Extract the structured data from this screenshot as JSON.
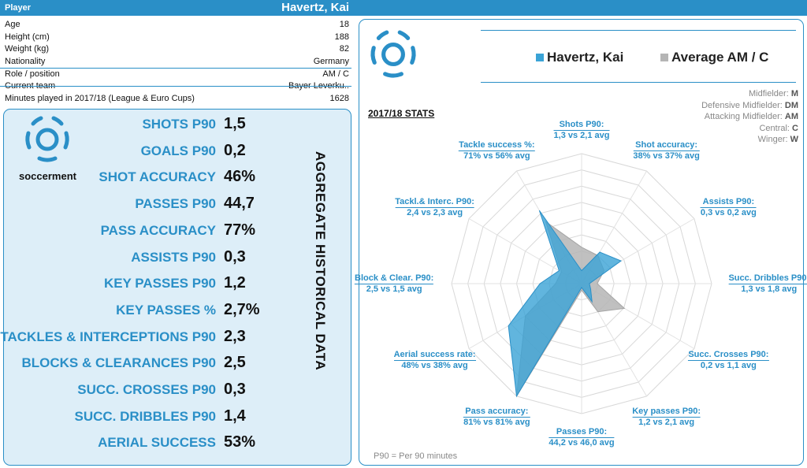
{
  "header": {
    "label": "Player",
    "player_name": "Havertz, Kai"
  },
  "info": [
    {
      "key": "Age",
      "value": "18"
    },
    {
      "key": "Height (cm)",
      "value": "188"
    },
    {
      "key": "Weight (kg)",
      "value": "82"
    },
    {
      "key": "Nationality",
      "value": "Germany"
    },
    {
      "key": "Role / position",
      "value": "AM / C"
    },
    {
      "key": "Current team",
      "value": "Bayer Leverku.."
    },
    {
      "key": "Minutes played in 2017/18 (League & Euro Cups)",
      "value": "1628"
    }
  ],
  "brand": "soccerment",
  "aggregate_title": "AGGREGATE HISTORICAL DATA",
  "aggregate": [
    {
      "label": "SHOTS P90",
      "value": "1,5"
    },
    {
      "label": "GOALS P90",
      "value": "0,2"
    },
    {
      "label": "SHOT ACCURACY",
      "value": "46%"
    },
    {
      "label": "PASSES P90",
      "value": "44,7"
    },
    {
      "label": "PASS ACCURACY",
      "value": "77%"
    },
    {
      "label": "ASSISTS P90",
      "value": "0,3"
    },
    {
      "label": "KEY PASSES P90",
      "value": "1,2"
    },
    {
      "label": "KEY PASSES %",
      "value": "2,7%"
    },
    {
      "label": "TACKLES & INTERCEPTIONS P90",
      "value": "2,3"
    },
    {
      "label": "BLOCKS & CLEARANCES P90",
      "value": "2,5"
    },
    {
      "label": "SUCC. CROSSES P90",
      "value": "0,3"
    },
    {
      "label": "SUCC. DRIBBLES P90",
      "value": "1,4"
    },
    {
      "label": "AERIAL SUCCESS",
      "value": "53%"
    }
  ],
  "legend": {
    "player": "Havertz, Kai",
    "average": "Average AM / C",
    "player_color": "#3aa3d6",
    "average_color": "#b5b5b5"
  },
  "roles": [
    {
      "name": "Midfielder:",
      "code": "M"
    },
    {
      "name": "Defensive Midfielder:",
      "code": "DM"
    },
    {
      "name": "Attacking Midfielder:",
      "code": "AM"
    },
    {
      "name": "Central:",
      "code": "C"
    },
    {
      "name": "Winger:",
      "code": "W"
    }
  ],
  "stats_title": "2017/18 STATS",
  "footnote": "P90 = Per 90 minutes",
  "chart_data": {
    "type": "radar",
    "axes": [
      {
        "label": "Shots P90:",
        "detail": "1,3 vs 2,1 avg",
        "player": 1.3,
        "average": 2.1
      },
      {
        "label": "Shot accuracy:",
        "detail": "38% vs 37% avg",
        "player": 38,
        "average": 37
      },
      {
        "label": "Assists P90:",
        "detail": "0,3 vs 0,2 avg",
        "player": 0.3,
        "average": 0.2
      },
      {
        "label": "Succ. Dribbles P90:",
        "detail": "1,3 vs 1,8 avg",
        "player": 1.3,
        "average": 1.8
      },
      {
        "label": "Succ. Crosses P90:",
        "detail": "0,2 vs 1,1 avg",
        "player": 0.2,
        "average": 1.1
      },
      {
        "label": "Key passes P90:",
        "detail": "1,2 vs 2,1 avg",
        "player": 1.2,
        "average": 2.1
      },
      {
        "label": "Passes P90:",
        "detail": "44,2 vs 46,0 avg",
        "player": 44.2,
        "average": 46.0
      },
      {
        "label": "Pass accuracy:",
        "detail": "81% vs 81% avg",
        "player": 81,
        "average": 81
      },
      {
        "label": "Aerial success rate:",
        "detail": "48% vs 38% avg",
        "player": 48,
        "average": 38
      },
      {
        "label": "Block & Clear. P90:",
        "detail": "2,5 vs 1,5 avg",
        "player": 2.5,
        "average": 1.5
      },
      {
        "label": "Tackl.& Interc. P90:",
        "detail": "2,4 vs 2,3 avg",
        "player": 2.4,
        "average": 2.3
      },
      {
        "label": "Tackle success %:",
        "detail": "71% vs 56% avg",
        "player": 71,
        "average": 56
      }
    ],
    "player_fraction": [
      0.1,
      0.28,
      0.35,
      0.06,
      0.08,
      0.16,
      0.03,
      1.0,
      0.65,
      0.32,
      0.2,
      0.65
    ],
    "average_fraction": [
      0.28,
      0.25,
      0.2,
      0.12,
      0.38,
      0.25,
      0.05,
      1.0,
      0.5,
      0.2,
      0.18,
      0.55
    ],
    "grid_rings": 8,
    "series": [
      {
        "name": "Havertz, Kai"
      },
      {
        "name": "Average AM / C"
      }
    ]
  }
}
